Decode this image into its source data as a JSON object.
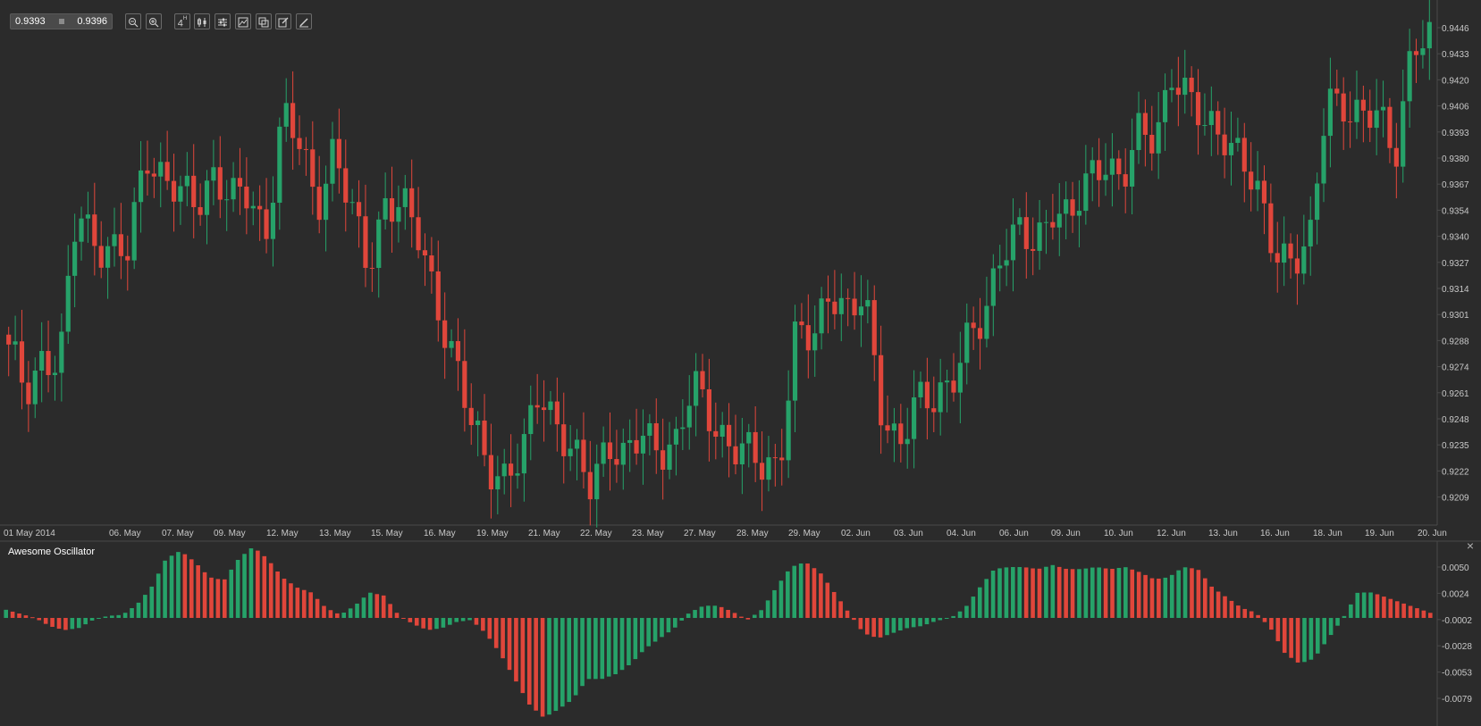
{
  "price_box": {
    "bid": "0.9393",
    "ask": "0.9396"
  },
  "toolbar": {
    "zoom_out": "zoom-out",
    "zoom_in": "zoom-in",
    "timeframe_label": "4",
    "timeframe_sup": "H"
  },
  "oscillator_panel": {
    "title": "Awesome Oscillator"
  },
  "colors": {
    "background": "#2b2b2b",
    "up": "#26a269",
    "down": "#e0463b",
    "grid_line": "#4a4a4a",
    "axis_text": "#c8c8c8"
  },
  "chart_data": [
    {
      "type": "candlestick",
      "title": "",
      "y_ticks": [
        "0.9446",
        "0.9433",
        "0.9420",
        "0.9406",
        "0.9393",
        "0.9380",
        "0.9367",
        "0.9354",
        "0.9340",
        "0.9327",
        "0.9314",
        "0.9301",
        "0.9288",
        "0.9274",
        "0.9261",
        "0.9248",
        "0.9235",
        "0.9222",
        "0.9209"
      ],
      "x_labels": [
        "01 May 2014",
        "06. May",
        "07. May",
        "09. May",
        "12. May",
        "13. May",
        "15. May",
        "16. May",
        "19. May",
        "21. May",
        "22. May",
        "23. May",
        "27. May",
        "28. May",
        "29. May",
        "02. Jun",
        "03. Jun",
        "04. Jun",
        "06. Jun",
        "09. Jun",
        "10. Jun",
        "12. Jun",
        "13. Jun",
        "16. Jun",
        "18. Jun",
        "19. Jun",
        "20. Jun"
      ],
      "ylim": [
        0.92,
        0.945
      ],
      "close_anchors": [
        0.928,
        0.9265,
        0.9282,
        0.9272,
        0.9355,
        0.9343,
        0.933,
        0.933,
        0.9388,
        0.937,
        0.9358,
        0.936,
        0.9375,
        0.9355,
        0.9362,
        0.9345,
        0.94,
        0.9385,
        0.936,
        0.9385,
        0.935,
        0.9328,
        0.936,
        0.9352,
        0.934,
        0.9312,
        0.9275,
        0.9245,
        0.923,
        0.9218,
        0.9225,
        0.9268,
        0.9248,
        0.9225,
        0.9215,
        0.9242,
        0.9225,
        0.9238,
        0.9238,
        0.9236,
        0.9262,
        0.9252,
        0.9238,
        0.9228,
        0.9225,
        0.923,
        0.929,
        0.9285,
        0.932,
        0.9302,
        0.9305,
        0.9255,
        0.9238,
        0.9252,
        0.9258,
        0.9272,
        0.9285,
        0.9295,
        0.934,
        0.9345,
        0.9328,
        0.9358,
        0.9355,
        0.9362,
        0.9378,
        0.9375,
        0.939,
        0.9385,
        0.943,
        0.941,
        0.939,
        0.9395,
        0.9385,
        0.9355,
        0.9332,
        0.9335,
        0.9332,
        0.9408,
        0.9412,
        0.94,
        0.9398,
        0.9385,
        0.944,
        0.9435
      ]
    },
    {
      "type": "bar",
      "title": "Awesome Oscillator",
      "y_ticks": [
        "0.0050",
        "0.0024",
        "-0.0002",
        "-0.0028",
        "-0.0053",
        "-0.0079"
      ],
      "ylim": [
        -0.01,
        0.0072
      ],
      "value_anchors": [
        0.0008,
        0.0004,
        0.0,
        -0.0008,
        -0.0012,
        -0.001,
        -0.0002,
        0.0002,
        0.0003,
        0.0013,
        0.003,
        0.0058,
        0.0066,
        0.0055,
        0.004,
        0.0037,
        0.0058,
        0.007,
        0.0058,
        0.004,
        0.003,
        0.0025,
        0.001,
        0.0003,
        0.0012,
        0.0025,
        0.0022,
        0.0003,
        -0.0006,
        -0.0012,
        -0.001,
        -0.0004,
        -0.0002,
        -0.0015,
        -0.0035,
        -0.006,
        -0.0085,
        -0.0098,
        -0.009,
        -0.008,
        -0.006,
        -0.006,
        -0.0055,
        -0.0045,
        -0.003,
        -0.002,
        -0.001,
        0.0005,
        0.0012,
        0.0012,
        0.0006,
        -0.0002,
        0.0008,
        0.003,
        0.005,
        0.0055,
        0.0045,
        0.0025,
        0.0005,
        -0.0015,
        -0.002,
        -0.0015,
        -0.001,
        -0.0008,
        -0.0003,
        0.0,
        0.001,
        0.003,
        0.0048,
        0.005,
        0.005,
        0.0048,
        0.0052,
        0.0048,
        0.0048,
        0.005,
        0.0048,
        0.005,
        0.0045,
        0.0038,
        0.004,
        0.005,
        0.0048,
        0.003,
        0.002,
        0.001,
        0.0005,
        -0.001,
        -0.0035,
        -0.0045,
        -0.004,
        -0.002,
        0.0,
        0.0025,
        0.0025,
        0.002,
        0.0015,
        0.001,
        0.0005
      ]
    }
  ]
}
